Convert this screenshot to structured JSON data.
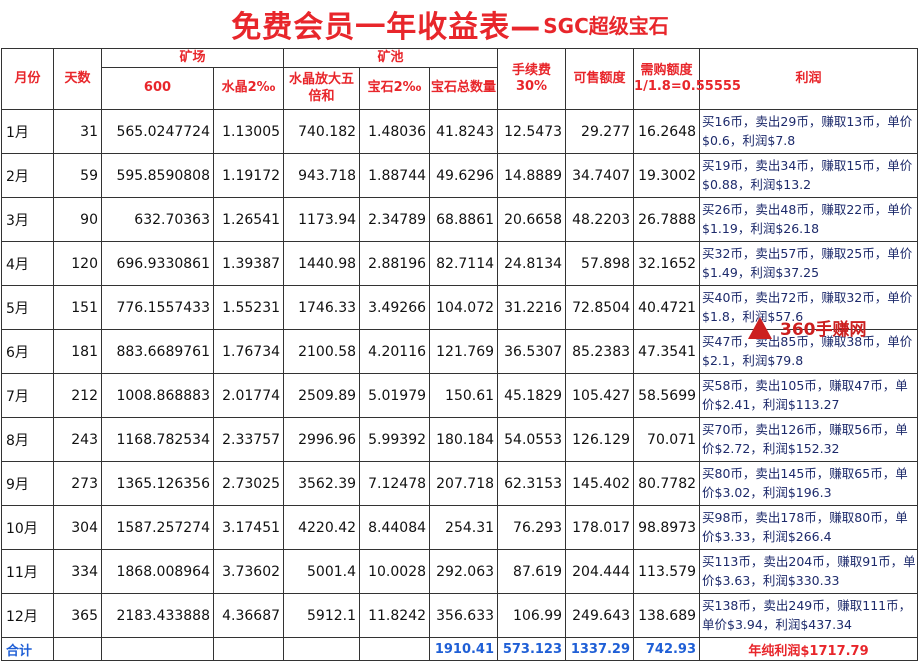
{
  "title": {
    "main": "免费会员一年收益表—",
    "sub": "SGC超级宝石"
  },
  "headers": {
    "month": "月份",
    "days": "天数",
    "mine_group": "矿场",
    "c600": "600",
    "crystal": "水晶2‰",
    "pool_group": "矿池",
    "crystal_amp": "水晶放大五倍和",
    "gem_rate": "宝石2‰",
    "gem_total": "宝石总数量",
    "fee": "手续费30%",
    "sellable": "可售额度",
    "purchase": "需购额度1/1.8=0.55555",
    "profit": "利润"
  },
  "rows": [
    {
      "month": "1月",
      "days": "31",
      "c600": "565.0247724",
      "crystal": "1.13005",
      "amp": "740.182",
      "gem": "1.48036",
      "total": "41.8243",
      "fee": "12.5473",
      "sell": "29.277",
      "buy": "16.2648",
      "profit": "买16币，卖出29币，赚取13币，单价$0.6，利润$7.8"
    },
    {
      "month": "2月",
      "days": "59",
      "c600": "595.8590808",
      "crystal": "1.19172",
      "amp": "943.718",
      "gem": "1.88744",
      "total": "49.6296",
      "fee": "14.8889",
      "sell": "34.7407",
      "buy": "19.3002",
      "profit": "买19币，卖出34币，赚取15币，单价$0.88，利润$13.2"
    },
    {
      "month": "3月",
      "days": "90",
      "c600": "632.70363",
      "crystal": "1.26541",
      "amp": "1173.94",
      "gem": "2.34789",
      "total": "68.8861",
      "fee": "20.6658",
      "sell": "48.2203",
      "buy": "26.7888",
      "profit": "买26币，卖出48币，赚取22币，单价$1.19，利润$26.18"
    },
    {
      "month": "4月",
      "days": "120",
      "c600": "696.9330861",
      "crystal": "1.39387",
      "amp": "1440.98",
      "gem": "2.88196",
      "total": "82.7114",
      "fee": "24.8134",
      "sell": "57.898",
      "buy": "32.1652",
      "profit": "买32币，卖出57币，赚取25币，单价$1.49，利润$37.25"
    },
    {
      "month": "5月",
      "days": "151",
      "c600": "776.1557433",
      "crystal": "1.55231",
      "amp": "1746.33",
      "gem": "3.49266",
      "total": "104.072",
      "fee": "31.2216",
      "sell": "72.8504",
      "buy": "40.4721",
      "profit": "买40币，卖出72币，赚取32币，单价$1.8，利润$57.6"
    },
    {
      "month": "6月",
      "days": "181",
      "c600": "883.6689761",
      "crystal": "1.76734",
      "amp": "2100.58",
      "gem": "4.20116",
      "total": "121.769",
      "fee": "36.5307",
      "sell": "85.2383",
      "buy": "47.3541",
      "profit": "买47币，卖出85币，赚取38币，单价$2.1，利润$79.8"
    },
    {
      "month": "7月",
      "days": "212",
      "c600": "1008.868883",
      "crystal": "2.01774",
      "amp": "2509.89",
      "gem": "5.01979",
      "total": "150.61",
      "fee": "45.1829",
      "sell": "105.427",
      "buy": "58.5699",
      "profit": "买58币，卖出105币，赚取47币，单价$2.41，利润$113.27"
    },
    {
      "month": "8月",
      "days": "243",
      "c600": "1168.782534",
      "crystal": "2.33757",
      "amp": "2996.96",
      "gem": "5.99392",
      "total": "180.184",
      "fee": "54.0553",
      "sell": "126.129",
      "buy": "70.071",
      "profit": "买70币，卖出126币，赚取56币，单价$2.72，利润$152.32"
    },
    {
      "month": "9月",
      "days": "273",
      "c600": "1365.126356",
      "crystal": "2.73025",
      "amp": "3562.39",
      "gem": "7.12478",
      "total": "207.718",
      "fee": "62.3153",
      "sell": "145.402",
      "buy": "80.7782",
      "profit": "买80币，卖出145币，赚取65币，单价$3.02，利润$196.3"
    },
    {
      "month": "10月",
      "days": "304",
      "c600": "1587.257274",
      "crystal": "3.17451",
      "amp": "4220.42",
      "gem": "8.44084",
      "total": "254.31",
      "fee": "76.293",
      "sell": "178.017",
      "buy": "98.8973",
      "profit": "买98币，卖出178币，赚取80币，单价$3.33，利润$266.4"
    },
    {
      "month": "11月",
      "days": "334",
      "c600": "1868.008964",
      "crystal": "3.73602",
      "amp": "5001.4",
      "gem": "10.0028",
      "total": "292.063",
      "fee": "87.619",
      "sell": "204.444",
      "buy": "113.579",
      "profit": "买113币，卖出204币，赚取91币，单价$3.63，利润$330.33"
    },
    {
      "month": "12月",
      "days": "365",
      "c600": "2183.433888",
      "crystal": "4.36687",
      "amp": "5912.1",
      "gem": "11.8242",
      "total": "356.633",
      "fee": "106.99",
      "sell": "249.643",
      "buy": "138.689",
      "profit": "买138币，卖出249币，赚取111币，单价$3.94，利润$437.34"
    }
  ],
  "totals": {
    "label": "合计",
    "total": "1910.41",
    "fee": "573.123",
    "sell": "1337.29",
    "buy": "742.93",
    "profit": "年纯利润$1717.79"
  },
  "watermark": {
    "text": "360手赚网"
  },
  "colors": {
    "header_red": "#e8262b",
    "total_blue": "#1f5fd6",
    "profit_navy": "#1d2a6b"
  }
}
